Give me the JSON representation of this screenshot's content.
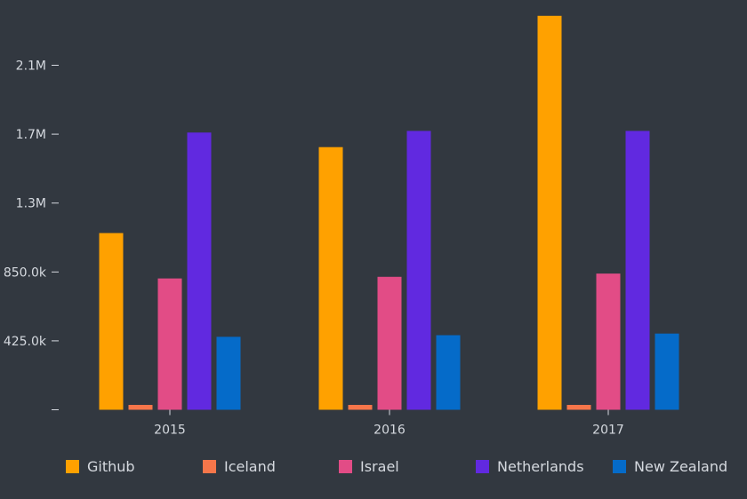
{
  "chart_data": {
    "type": "bar",
    "categories": [
      "2015",
      "2016",
      "2017"
    ],
    "series": [
      {
        "name": "Github",
        "color": "#FFA100",
        "values": [
          1090000,
          1620000,
          2430000
        ]
      },
      {
        "name": "Iceland",
        "color": "#F6764A",
        "values": [
          30000,
          30000,
          30000
        ]
      },
      {
        "name": "Israel",
        "color": "#E24C86",
        "values": [
          810000,
          820000,
          840000
        ]
      },
      {
        "name": "Netherlands",
        "color": "#6129E0",
        "values": [
          1710000,
          1720000,
          1720000
        ]
      },
      {
        "name": "New Zealand",
        "color": "#056BC9",
        "values": [
          450000,
          460000,
          470000
        ]
      }
    ],
    "y_ticks": [
      {
        "value": 0,
        "label": ""
      },
      {
        "value": 425000,
        "label": "425.0k"
      },
      {
        "value": 850000,
        "label": "850.0k"
      },
      {
        "value": 1275000,
        "label": "1.3M"
      },
      {
        "value": 1700000,
        "label": "1.7M"
      },
      {
        "value": 2125000,
        "label": "2.1M"
      }
    ],
    "ylim": [
      0,
      2550000
    ],
    "title": "",
    "xlabel": "",
    "ylabel": "",
    "legend_position": "bottom",
    "grid": false,
    "background": "#323840",
    "text_color": "#D5D9DF"
  }
}
